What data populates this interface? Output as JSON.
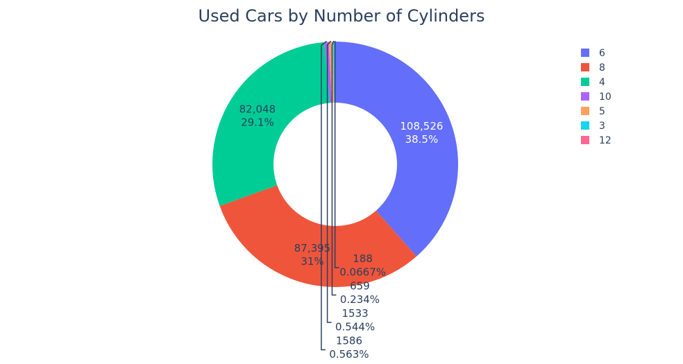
{
  "chart_data": {
    "type": "pie",
    "hole": true,
    "title": "Used Cars by Number of Cylinders",
    "legend_position": "top-right",
    "slices": [
      {
        "label": "6",
        "value": 108526,
        "value_text": "108,526",
        "percent_text": "38.5%",
        "color": "#636efa",
        "text_color": "#ffffff",
        "label_position": "inside"
      },
      {
        "label": "8",
        "value": 87395,
        "value_text": "87,395",
        "percent_text": "31%",
        "color": "#ef553b",
        "text_color": "#2a3f5f",
        "label_position": "inside"
      },
      {
        "label": "4",
        "value": 82048,
        "value_text": "82,048",
        "percent_text": "29.1%",
        "color": "#00cc96",
        "text_color": "#2a3f5f",
        "label_position": "inside"
      },
      {
        "label": "10",
        "value": 1586,
        "value_text": "1586",
        "percent_text": "0.563%",
        "color": "#ab63fa",
        "text_color": "#2a3f5f",
        "label_position": "outside"
      },
      {
        "label": "5",
        "value": 1533,
        "value_text": "1533",
        "percent_text": "0.544%",
        "color": "#ffa15a",
        "text_color": "#2a3f5f",
        "label_position": "outside"
      },
      {
        "label": "3",
        "value": 659,
        "value_text": "659",
        "percent_text": "0.234%",
        "color": "#19d3f3",
        "text_color": "#2a3f5f",
        "label_position": "outside"
      },
      {
        "label": "12",
        "value": 188,
        "value_text": "188",
        "percent_text": "0.0667%",
        "color": "#ff6692",
        "text_color": "#2a3f5f",
        "label_position": "outside"
      }
    ]
  }
}
